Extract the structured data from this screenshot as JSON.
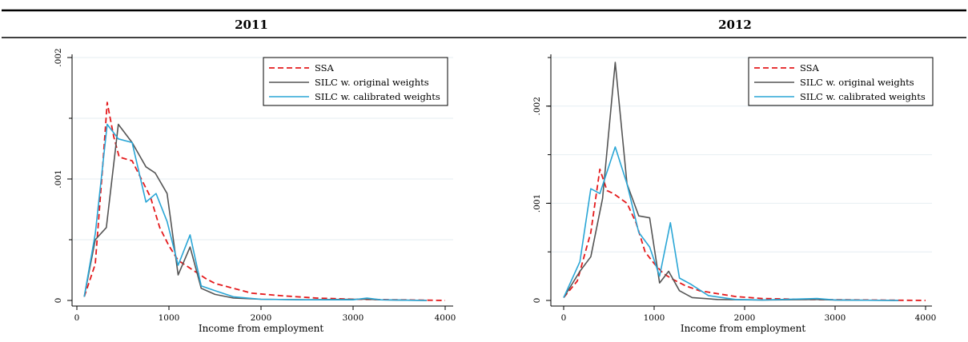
{
  "chart_data": [
    {
      "type": "line",
      "title": "2011",
      "xlabel": "Income from employment",
      "ylabel": "",
      "xlim": [
        0,
        4000
      ],
      "ylim": [
        0,
        0.002
      ],
      "x_ticks": [
        0,
        1000,
        2000,
        3000,
        4000
      ],
      "y_ticks": [
        0,
        0.001,
        0.002
      ],
      "y_tick_labels": [
        "0",
        ".001",
        ".002"
      ],
      "y_grid": [
        0.0005,
        0.001,
        0.0015,
        0.002
      ],
      "grid": true,
      "legend_position": "top-right",
      "series": [
        {
          "name": "SSA",
          "color": "#e41a1c",
          "dash": "dashed",
          "points": [
            [
              80,
              3e-05
            ],
            [
              200,
              0.0003
            ],
            [
              280,
              0.0011
            ],
            [
              330,
              0.00163
            ],
            [
              400,
              0.00135
            ],
            [
              460,
              0.00118
            ],
            [
              600,
              0.00115
            ],
            [
              700,
              0.001
            ],
            [
              800,
              0.00085
            ],
            [
              900,
              0.0006
            ],
            [
              1000,
              0.00045
            ],
            [
              1100,
              0.00033
            ],
            [
              1200,
              0.00028
            ],
            [
              1300,
              0.00023
            ],
            [
              1400,
              0.00018
            ],
            [
              1500,
              0.00014
            ],
            [
              1700,
              0.0001
            ],
            [
              1900,
              6e-05
            ],
            [
              2200,
              4e-05
            ],
            [
              2600,
              2e-05
            ],
            [
              3000,
              1e-05
            ],
            [
              3500,
              5e-06
            ],
            [
              4000,
              0
            ]
          ]
        },
        {
          "name": "SILC w. original weights",
          "color": "#555555",
          "dash": "solid",
          "points": [
            [
              80,
              3e-05
            ],
            [
              200,
              0.0005
            ],
            [
              320,
              0.0006
            ],
            [
              450,
              0.00145
            ],
            [
              600,
              0.0013
            ],
            [
              750,
              0.0011
            ],
            [
              850,
              0.00105
            ],
            [
              980,
              0.00088
            ],
            [
              1100,
              0.00021
            ],
            [
              1230,
              0.00044
            ],
            [
              1350,
              0.0001
            ],
            [
              1500,
              5e-05
            ],
            [
              1700,
              2e-05
            ],
            [
              2000,
              1e-05
            ],
            [
              2500,
              5e-06
            ],
            [
              3000,
              1e-05
            ],
            [
              3150,
              1e-05
            ],
            [
              3300,
              5e-06
            ],
            [
              3800,
              0
            ]
          ]
        },
        {
          "name": "SILC w. calibrated weights",
          "color": "#2aa6d6",
          "dash": "solid",
          "points": [
            [
              80,
              3e-05
            ],
            [
              200,
              0.00055
            ],
            [
              330,
              0.00145
            ],
            [
              450,
              0.00133
            ],
            [
              600,
              0.0013
            ],
            [
              750,
              0.00081
            ],
            [
              860,
              0.00088
            ],
            [
              980,
              0.00065
            ],
            [
              1100,
              0.00029
            ],
            [
              1230,
              0.00054
            ],
            [
              1350,
              0.00012
            ],
            [
              1500,
              8e-05
            ],
            [
              1700,
              3e-05
            ],
            [
              2000,
              1e-05
            ],
            [
              2500,
              5e-06
            ],
            [
              3000,
              5e-06
            ],
            [
              3150,
              2e-05
            ],
            [
              3300,
              5e-06
            ],
            [
              3800,
              0
            ]
          ]
        }
      ]
    },
    {
      "type": "line",
      "title": "2012",
      "xlabel": "Income from employment",
      "ylabel": "",
      "xlim": [
        0,
        4000
      ],
      "ylim": [
        0,
        0.0025
      ],
      "x_ticks": [
        0,
        1000,
        2000,
        3000,
        4000
      ],
      "y_ticks": [
        0,
        0.001,
        0.002
      ],
      "y_tick_labels": [
        "0",
        ".001",
        ".002"
      ],
      "y_grid": [
        0.0005,
        0.001,
        0.0015,
        0.002,
        0.0025
      ],
      "grid": true,
      "legend_position": "top-right",
      "series": [
        {
          "name": "SSA",
          "color": "#e41a1c",
          "dash": "dashed",
          "points": [
            [
              0,
              3e-05
            ],
            [
              150,
              0.0002
            ],
            [
              300,
              0.0007
            ],
            [
              400,
              0.00135
            ],
            [
              480,
              0.00113
            ],
            [
              550,
              0.0011
            ],
            [
              700,
              0.001
            ],
            [
              800,
              0.0008
            ],
            [
              900,
              0.0005
            ],
            [
              1000,
              0.00038
            ],
            [
              1100,
              0.00028
            ],
            [
              1200,
              0.00022
            ],
            [
              1350,
              0.00015
            ],
            [
              1500,
              0.0001
            ],
            [
              1700,
              7e-05
            ],
            [
              1900,
              4e-05
            ],
            [
              2200,
              2e-05
            ],
            [
              2700,
              1e-05
            ],
            [
              3300,
              5e-06
            ],
            [
              4000,
              0
            ]
          ]
        },
        {
          "name": "SILC w. original weights",
          "color": "#555555",
          "dash": "solid",
          "points": [
            [
              0,
              3e-05
            ],
            [
              180,
              0.0003
            ],
            [
              300,
              0.00045
            ],
            [
              430,
              0.00105
            ],
            [
              570,
              0.00245
            ],
            [
              700,
              0.0012
            ],
            [
              830,
              0.00087
            ],
            [
              950,
              0.00085
            ],
            [
              1060,
              0.00018
            ],
            [
              1160,
              0.0003
            ],
            [
              1280,
              0.0001
            ],
            [
              1420,
              3e-05
            ],
            [
              1700,
              1e-05
            ],
            [
              2200,
              5e-06
            ],
            [
              2800,
              1e-05
            ],
            [
              3000,
              5e-06
            ],
            [
              3700,
              0
            ]
          ]
        },
        {
          "name": "SILC w. calibrated weights",
          "color": "#2aa6d6",
          "dash": "solid",
          "points": [
            [
              0,
              3e-05
            ],
            [
              180,
              0.0004
            ],
            [
              300,
              0.00115
            ],
            [
              400,
              0.0011
            ],
            [
              570,
              0.00158
            ],
            [
              700,
              0.0012
            ],
            [
              830,
              0.0007
            ],
            [
              950,
              0.00055
            ],
            [
              1060,
              0.00025
            ],
            [
              1180,
              0.0008
            ],
            [
              1280,
              0.00023
            ],
            [
              1400,
              0.00017
            ],
            [
              1600,
              5e-05
            ],
            [
              1900,
              1e-05
            ],
            [
              2200,
              5e-06
            ],
            [
              2800,
              2e-05
            ],
            [
              3000,
              5e-06
            ],
            [
              3700,
              0
            ]
          ]
        }
      ]
    }
  ]
}
